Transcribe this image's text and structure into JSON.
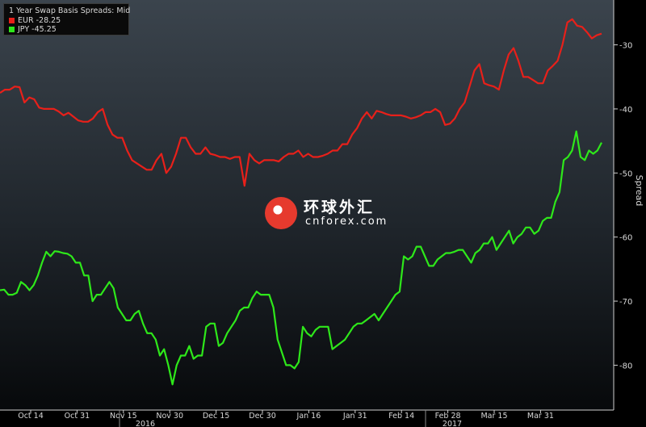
{
  "chart_data": {
    "type": "line",
    "title": "1 Year Swap Basis Spreads: Mid",
    "ylabel": "Spread",
    "xlabel": "",
    "ylim": [
      -87,
      -23
    ],
    "yticks": [
      -30,
      -40,
      -50,
      -60,
      -70,
      -80
    ],
    "grid": false,
    "legend_position": "top-left",
    "x_ticks": [
      "Oct 14",
      "Oct 31",
      "Nov 15",
      "Nov 30",
      "Dec 15",
      "Dec 30",
      "Jan 16",
      "Jan 31",
      "Feb 14",
      "Feb 28",
      "Mar 15",
      "Mar 31"
    ],
    "year_labels": [
      "2016",
      "2017"
    ],
    "series": [
      {
        "name": "EUR",
        "last": "-28.25",
        "color": "#e8201a",
        "values": [
          -37.5,
          -37,
          -37,
          -36.5,
          -36.6,
          -39,
          -38.2,
          -38.5,
          -39.8,
          -40,
          -40,
          -40,
          -40.4,
          -41,
          -40.6,
          -41.2,
          -41.8,
          -42,
          -42,
          -41.5,
          -40.5,
          -40,
          -42.5,
          -44,
          -44.5,
          -44.5,
          -46.5,
          -48,
          -48.5,
          -49,
          -49.5,
          -49.5,
          -48,
          -47,
          -50,
          -49,
          -47,
          -44.5,
          -44.5,
          -46,
          -47,
          -47,
          -46,
          -47,
          -47.2,
          -47.5,
          -47.5,
          -47.8,
          -47.5,
          -47.5,
          -52,
          -47,
          -48,
          -48.5,
          -48,
          -48,
          -48,
          -48.2,
          -47.5,
          -47,
          -47,
          -46.5,
          -47.5,
          -47,
          -47.5,
          -47.5,
          -47.3,
          -47,
          -46.5,
          -46.5,
          -45.5,
          -45.5,
          -44,
          -43,
          -41.5,
          -40.5,
          -41.5,
          -40.3,
          -40.5,
          -40.8,
          -41,
          -41,
          -41,
          -41.2,
          -41.5,
          -41.3,
          -41,
          -40.5,
          -40.5,
          -40,
          -40.5,
          -42.5,
          -42.3,
          -41.5,
          -40,
          -39,
          -36.5,
          -34,
          -33,
          -36,
          -36.3,
          -36.5,
          -37,
          -34,
          -31.5,
          -30.5,
          -32.5,
          -35,
          -35,
          -35.5,
          -36,
          -36,
          -34,
          -33.3,
          -32.5,
          -30,
          -26.5,
          -26,
          -27,
          -27.2,
          -28,
          -29,
          -28.5,
          -28.25
        ]
      },
      {
        "name": "JPY",
        "last": "-45.25",
        "color": "#2ee81a",
        "values": [
          -68.3,
          -68.2,
          -69,
          -69,
          -68.7,
          -67,
          -67.5,
          -68.3,
          -67.5,
          -66,
          -64,
          -62.3,
          -63,
          -62.2,
          -62.3,
          -62.5,
          -62.6,
          -63,
          -64,
          -64,
          -66,
          -66,
          -70,
          -69,
          -69,
          -68,
          -67,
          -68,
          -71,
          -72,
          -73,
          -73,
          -72,
          -71.5,
          -73.5,
          -75,
          -75,
          -76,
          -78.5,
          -77.5,
          -80,
          -83,
          -80,
          -78.5,
          -78.5,
          -77,
          -79,
          -78.5,
          -78.5,
          -74,
          -73.5,
          -73.5,
          -77,
          -76.5,
          -75,
          -74,
          -73,
          -71.5,
          -71,
          -71,
          -69.5,
          -68.5,
          -69,
          -69,
          -69,
          -71,
          -76,
          -78,
          -80,
          -80,
          -80.5,
          -79.5,
          -74,
          -75,
          -75.5,
          -74.5,
          -74,
          -74,
          -74,
          -77.5,
          -77,
          -76.5,
          -76,
          -75,
          -74,
          -73.5,
          -73.5,
          -73,
          -72.5,
          -72,
          -73,
          -72,
          -71,
          -70,
          -69,
          -68.5,
          -63,
          -63.5,
          -63,
          -61.5,
          -61.5,
          -63,
          -64.5,
          -64.5,
          -63.5,
          -63,
          -62.5,
          -62.5,
          -62.3,
          -62,
          -62,
          -63,
          -64,
          -62.5,
          -62,
          -61,
          -61,
          -60,
          -62,
          -61,
          -60,
          -59,
          -61,
          -60,
          -59.5,
          -58.5,
          -58.5,
          -59.5,
          -59,
          -57.5,
          -57,
          -57,
          -54.5,
          -53,
          -48,
          -47.5,
          -46.5,
          -43.5,
          -47.5,
          -48,
          -46.5,
          -47,
          -46.5,
          -45.25
        ]
      }
    ]
  },
  "watermark": {
    "cn": "环球外汇",
    "en": "cnforex.com"
  }
}
